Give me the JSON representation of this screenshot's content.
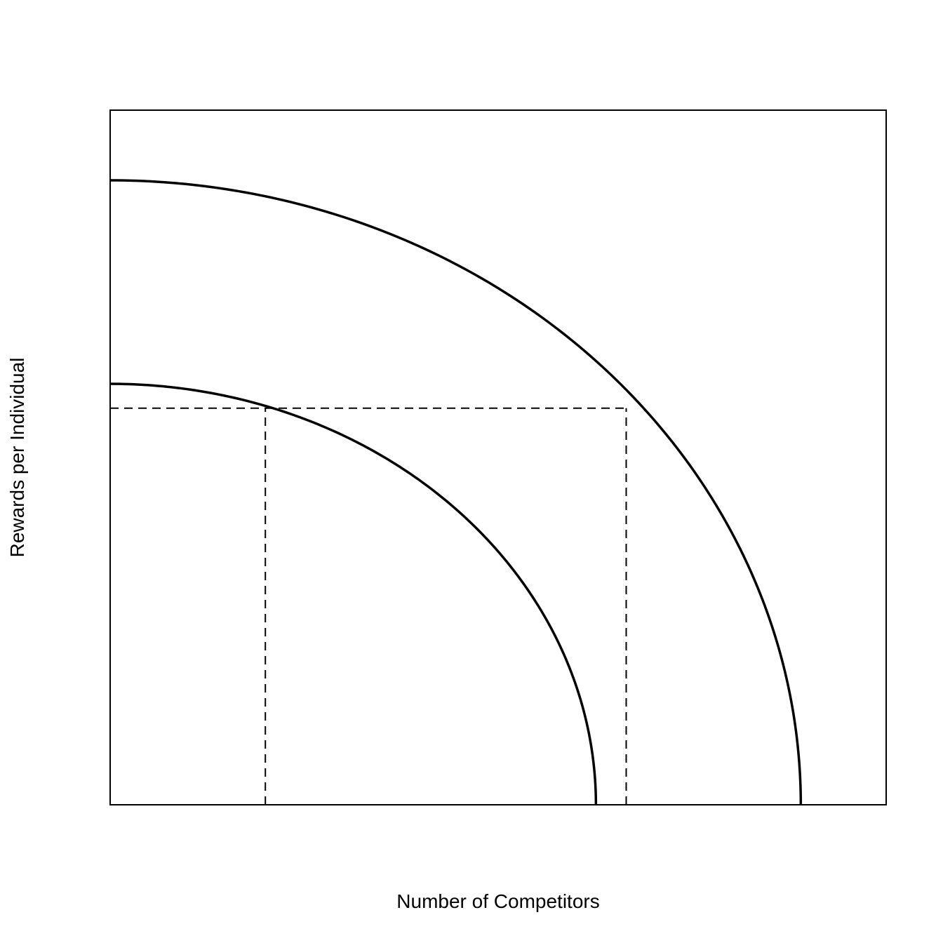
{
  "chart_data": {
    "type": "line",
    "title": "",
    "xlabel": "Number of Competitors",
    "ylabel": "Rewards per Individual",
    "xlim": [
      0,
      1
    ],
    "ylim": [
      0,
      1
    ],
    "grid": false,
    "axis_ticks": false,
    "series": [
      {
        "curve": "quarter-ellipse",
        "x_intercept": 0.626,
        "y_intercept": 0.606,
        "color": "#000000",
        "style": "solid"
      },
      {
        "curve": "quarter-ellipse",
        "x_intercept": 0.89,
        "y_intercept": 0.899,
        "color": "#000000",
        "style": "solid"
      }
    ],
    "reference_lines": [
      {
        "orientation": "horizontal",
        "y": 0.571,
        "x_from": 0,
        "x_to": 0.665,
        "style": "dashed"
      },
      {
        "orientation": "vertical",
        "x": 0.2,
        "y_from": 0,
        "y_to": 0.571,
        "style": "dashed"
      },
      {
        "orientation": "vertical",
        "x": 0.665,
        "y_from": 0,
        "y_to": 0.571,
        "style": "dashed"
      }
    ]
  }
}
